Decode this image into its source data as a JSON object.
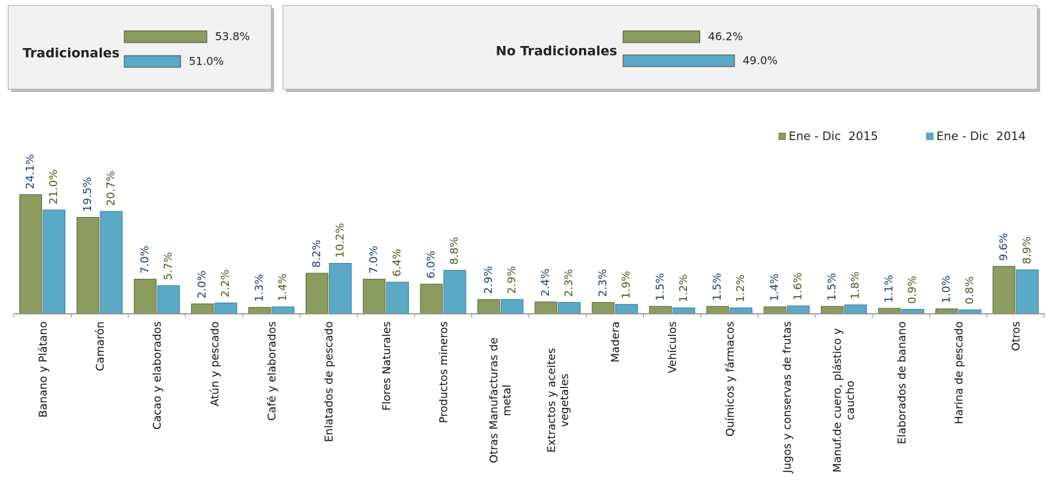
{
  "chart_data": [
    {
      "type": "hbar",
      "title": "Tradicionales",
      "values": [
        53.8,
        51.0
      ],
      "value_labels": [
        "53.8%",
        "51.0%"
      ],
      "colors": [
        "#8c9b5e",
        "#5aa9c6"
      ],
      "xlim": [
        45,
        56
      ]
    },
    {
      "type": "hbar",
      "title": "No Tradicionales",
      "values": [
        46.2,
        49.0
      ],
      "value_labels": [
        "46.2%",
        "49.0%"
      ],
      "colors": [
        "#8c9b5e",
        "#5aa9c6"
      ],
      "xlim": [
        40,
        50
      ]
    },
    {
      "type": "bar",
      "legend": "top-right",
      "ylim": [
        0,
        30
      ],
      "categories": [
        "Banano y Plátano",
        "Camarón",
        "Cacao y elaborados",
        "Atún y pescado",
        "Café y elaborados",
        "Enlatados de pescado",
        "Flores Naturales",
        "Productos mineros",
        "Otras Manufacturas de metal",
        "Extractos y aceites vegetales",
        "Madera",
        "Vehículos",
        "Químicos y fármacos",
        "Jugos y conservas de frutas",
        "Manuf.de cuero, plástico y caucho",
        "Elaborados de banano",
        "Harina de pescado",
        "Otros"
      ],
      "series": [
        {
          "name": "Ene - Dic  2015",
          "color": "#8c9b5e",
          "values": [
            24.1,
            19.5,
            7.0,
            2.0,
            1.3,
            8.2,
            7.0,
            6.0,
            2.9,
            2.4,
            2.3,
            1.5,
            1.5,
            1.4,
            1.5,
            1.1,
            1.0,
            9.6
          ],
          "value_labels": [
            "24.1%",
            "19.5%",
            "7.0%",
            "2.0%",
            "1.3%",
            "8.2%",
            "7.0%",
            "6.0%",
            "2.9%",
            "2.4%",
            "2.3%",
            "1.5%",
            "1.5%",
            "1.4%",
            "1.5%",
            "1.1%",
            "1.0%",
            "9.6%"
          ]
        },
        {
          "name": "Ene - Dic  2014",
          "color": "#5aa9c6",
          "values": [
            21.0,
            20.7,
            5.7,
            2.2,
            1.4,
            10.2,
            6.4,
            8.8,
            2.9,
            2.3,
            1.9,
            1.2,
            1.2,
            1.6,
            1.8,
            0.9,
            0.8,
            8.9
          ],
          "value_labels": [
            "21.0%",
            "20.7%",
            "5.7%",
            "2.2%",
            "1.4%",
            "10.2%",
            "6.4%",
            "8.8%",
            "2.9%",
            "2.3%",
            "1.9%",
            "1.2%",
            "1.2%",
            "1.6%",
            "1.8%",
            "0.9%",
            "0.8%",
            "8.9%"
          ]
        }
      ]
    }
  ]
}
